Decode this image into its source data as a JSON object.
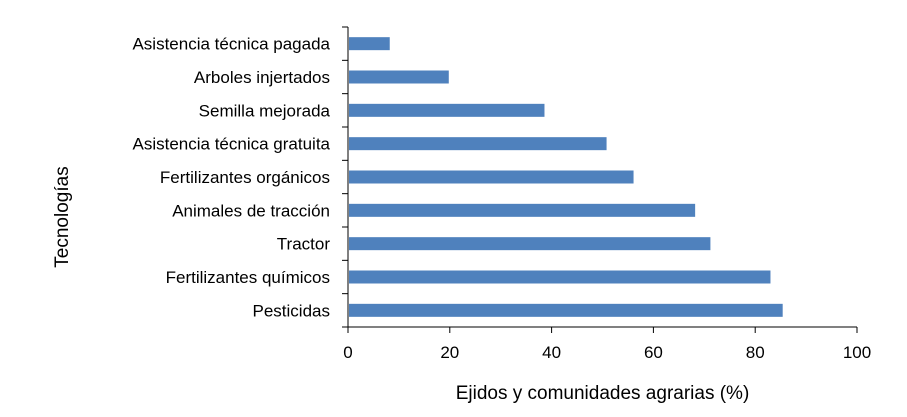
{
  "chart_data": {
    "type": "bar",
    "orientation": "horizontal",
    "categories": [
      "Asistencia técnica pagada",
      "Arboles injertados",
      "Semilla mejorada",
      "Asistencia técnica gratuita",
      "Fertilizantes orgánicos",
      "Animales de tracción",
      "Tractor",
      "Fertilizantes químicos",
      "Pesticidas"
    ],
    "values": [
      8.2,
      19.8,
      38.6,
      50.8,
      56.1,
      68.2,
      71.2,
      83.0,
      85.4
    ],
    "title": "",
    "xlabel": "Ejidos y comunidades agrarias (%)",
    "ylabel": "Tecnologías",
    "xlim": [
      0,
      100
    ],
    "xticks": [
      0,
      20,
      40,
      60,
      80,
      100
    ],
    "grid": false,
    "legend": "none",
    "bar_color": "#4f81bd"
  }
}
